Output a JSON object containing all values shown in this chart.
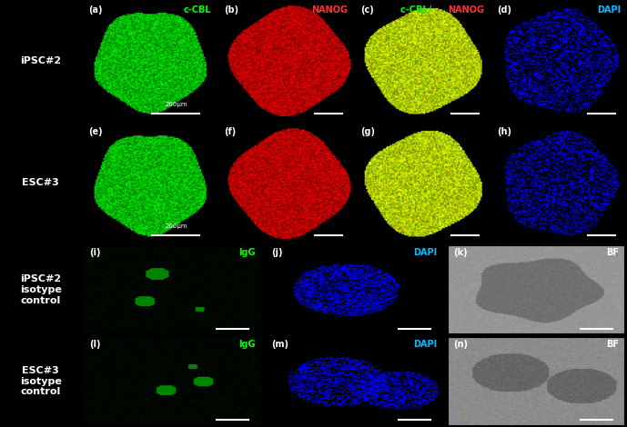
{
  "figure_width": 6.89,
  "figure_height": 4.7,
  "background_color": "#000000",
  "row_labels": [
    "iPSC#2",
    "ESC#3",
    "iPSC#2\nisotype\ncontrol",
    "ESC#3\nisotype\ncontrol"
  ],
  "scale_bar_text": "200μm",
  "label_color": "#ffffff",
  "label_fontsize": 7,
  "row_label_fontsize": 8,
  "panel_label_fontsize": 7
}
